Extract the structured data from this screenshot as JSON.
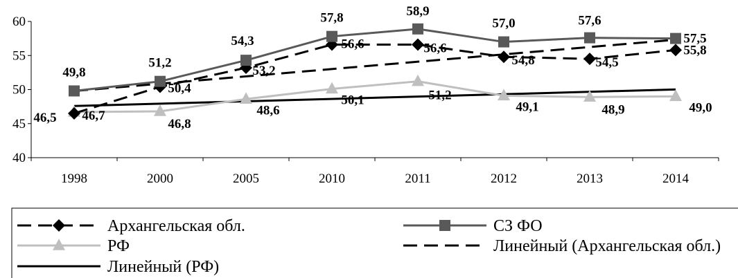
{
  "chart_data": {
    "type": "line",
    "title": "",
    "xlabel": "",
    "ylabel": "",
    "categories": [
      "1998",
      "2000",
      "2005",
      "2010",
      "2011",
      "2012",
      "2013",
      "2014"
    ],
    "ylim": [
      40,
      60
    ],
    "yticks": [
      "40",
      "45",
      "50",
      "55",
      "60"
    ],
    "grid": false,
    "legend_position": "bottom",
    "series": [
      {
        "name": "Архангельская обл.",
        "values": [
          46.5,
          50.4,
          53.2,
          56.6,
          56.6,
          54.8,
          54.5,
          55.8
        ],
        "labels": [
          "46,5",
          "50,4",
          "53,2",
          "56,6",
          "56,6",
          "54,8",
          "54,5",
          "55,8"
        ],
        "color": "#000000",
        "line": "dashed",
        "marker": "diamond"
      },
      {
        "name": "СЗ ФО",
        "values": [
          49.8,
          51.2,
          54.3,
          57.8,
          58.9,
          57.0,
          57.6,
          57.5
        ],
        "labels": [
          "49,8",
          "51,2",
          "54,3",
          "57,8",
          "58,9",
          "57,0",
          "57,6",
          "57,5"
        ],
        "color": "#595959",
        "line": "solid",
        "marker": "square"
      },
      {
        "name": "РФ",
        "values": [
          46.7,
          46.8,
          48.6,
          50.1,
          51.2,
          49.1,
          48.9,
          49.0
        ],
        "labels": [
          "46,7",
          "46,8",
          "48,6",
          "50,1",
          "51,2",
          "49,1",
          "48,9",
          "49,0"
        ],
        "color": "#bfbfbf",
        "line": "solid",
        "marker": "triangle"
      }
    ],
    "trendlines": [
      {
        "name": "Линейный (Архангельская обл.)",
        "of": "Архангельская обл.",
        "color": "#000000",
        "line": "dashed"
      },
      {
        "name": "Линейный (РФ)",
        "of": "РФ",
        "color": "#000000",
        "line": "solid"
      }
    ]
  }
}
